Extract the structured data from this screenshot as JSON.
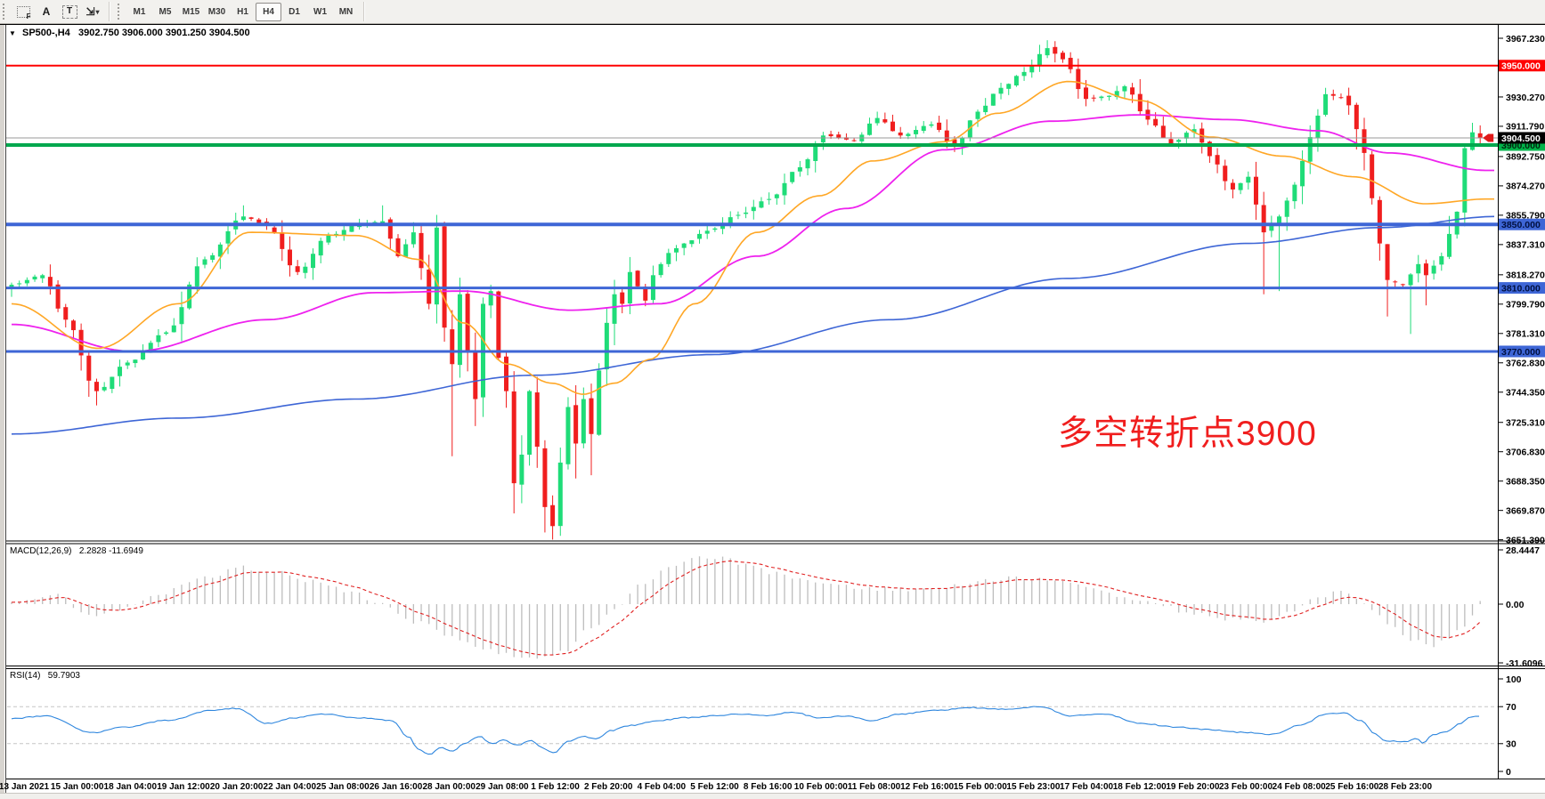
{
  "toolbar": {
    "icons": [
      {
        "name": "template-grid-icon",
        "glyph": "F"
      },
      {
        "name": "text-label-icon",
        "glyph": "A"
      },
      {
        "name": "text-box-icon",
        "glyph": "T"
      },
      {
        "name": "arrows-tool-icon",
        "glyph": "⇲",
        "caret": "▾"
      }
    ],
    "timeframes": [
      "M1",
      "M5",
      "M15",
      "M30",
      "H1",
      "H4",
      "D1",
      "W1",
      "MN"
    ],
    "active_timeframe": "H4"
  },
  "chart": {
    "dropdown_icon": "▼",
    "symbol_period": "SP500-,H4",
    "ohlc": "3902.750 3906.000 3901.250 3904.500"
  },
  "annotation": {
    "text": "多空转折点3900",
    "color": "#F01E1E"
  },
  "price_axis": {
    "ticks": [
      "3967.230",
      "3930.270",
      "3911.790",
      "3892.750",
      "3874.270",
      "3855.790",
      "3837.310",
      "3818.270",
      "3799.790",
      "3781.310",
      "3762.830",
      "3744.350",
      "3725.310",
      "3706.830",
      "3688.350",
      "3669.870",
      "3651.390"
    ],
    "badges": [
      {
        "text": "3950.000",
        "price": 3950,
        "bg": "#FF0000",
        "fg": "#FFFFFF"
      },
      {
        "text": "3900.000",
        "price": 3900,
        "bg": "#00B44A",
        "fg": "#00260D"
      },
      {
        "text": "3850.000",
        "price": 3850,
        "bg": "#3E66D6",
        "fg": "#001040"
      },
      {
        "text": "3810.000",
        "price": 3810,
        "bg": "#3E66D6",
        "fg": "#001040"
      },
      {
        "text": "3770.000",
        "price": 3770,
        "bg": "#3E66D6",
        "fg": "#001040"
      }
    ],
    "current_badge": {
      "text": "3904.500",
      "price": 3904.5,
      "bg": "#000000",
      "fg": "#FFFFFF"
    }
  },
  "hlines": [
    {
      "price": 3950,
      "color": "#FF0000",
      "width": 2
    },
    {
      "price": 3900,
      "color": "#00A84E",
      "width": 4
    },
    {
      "price": 3850,
      "color": "#3E66D6",
      "width": 4
    },
    {
      "price": 3810,
      "color": "#3E66D6",
      "width": 3
    },
    {
      "price": 3770,
      "color": "#3E66D6",
      "width": 3
    }
  ],
  "current_price_line": {
    "price": 3904.5,
    "color": "#9a9a9a"
  },
  "macd_panel": {
    "label": "MACD(12,26,9)",
    "values": "2.2828 -11.6949",
    "axis_labels": [
      {
        "text": "28.4447",
        "value": 28.4447
      },
      {
        "text": "0.00",
        "value": 0
      },
      {
        "text": "-31.6096",
        "value": -31.6096
      }
    ],
    "bar_color": "#bdbdbd",
    "signal_color": "#e02020"
  },
  "rsi_panel": {
    "label": "RSI(14)",
    "value": "59.7903",
    "axis_labels": [
      {
        "text": "100",
        "value": 100
      },
      {
        "text": "70",
        "value": 70
      },
      {
        "text": "30",
        "value": 30
      },
      {
        "text": "0",
        "value": 0
      }
    ],
    "levels": [
      70,
      30
    ],
    "line_color": "#2E86DE"
  },
  "time_axis": {
    "labels": [
      "13 Jan 2021",
      "15 Jan 00:00",
      "18 Jan 04:00",
      "19 Jan 12:00",
      "20 Jan 20:00",
      "22 Jan 04:00",
      "25 Jan 08:00",
      "26 Jan 16:00",
      "28 Jan 00:00",
      "29 Jan 08:00",
      "1 Feb 12:00",
      "2 Feb 20:00",
      "4 Feb 04:00",
      "5 Feb 12:00",
      "8 Feb 16:00",
      "10 Feb 00:00",
      "11 Feb 08:00",
      "12 Feb 16:00",
      "15 Feb 00:00",
      "15 Feb 23:00",
      "17 Feb 04:00",
      "18 Feb 12:00",
      "19 Feb 20:00",
      "23 Feb 00:00",
      "24 Feb 08:00",
      "25 Feb 16:00",
      "28 Feb 23:00"
    ]
  },
  "chart_data": {
    "type": "candlestick",
    "symbol": "SP500-",
    "timeframe": "H4",
    "price_range": {
      "top": 3967.23,
      "bottom": 3651.39
    },
    "candle_count": 191,
    "bull_color": "#1FDC78",
    "bear_color": "#F01E1E",
    "close_waypoints": [
      [
        0,
        3812
      ],
      [
        4,
        3818
      ],
      [
        7,
        3790
      ],
      [
        11,
        3745
      ],
      [
        15,
        3763
      ],
      [
        20,
        3782
      ],
      [
        25,
        3828
      ],
      [
        30,
        3855
      ],
      [
        33,
        3849
      ],
      [
        37,
        3820
      ],
      [
        41,
        3843
      ],
      [
        45,
        3850
      ],
      [
        48,
        3852
      ],
      [
        50,
        3830
      ],
      [
        52,
        3845
      ],
      [
        54,
        3800
      ],
      [
        55,
        3848
      ],
      [
        56,
        3785
      ],
      [
        57,
        3762
      ],
      [
        58,
        3806
      ],
      [
        59,
        3770
      ],
      [
        60,
        3740
      ],
      [
        61,
        3800
      ],
      [
        62,
        3808
      ],
      [
        63,
        3766
      ],
      [
        64,
        3745
      ],
      [
        65,
        3687
      ],
      [
        66,
        3705
      ],
      [
        67,
        3745
      ],
      [
        68,
        3710
      ],
      [
        69,
        3672
      ],
      [
        70,
        3660
      ],
      [
        71,
        3700
      ],
      [
        72,
        3735
      ],
      [
        73,
        3712
      ],
      [
        74,
        3740
      ],
      [
        75,
        3718
      ],
      [
        76,
        3758
      ],
      [
        77,
        3788
      ],
      [
        78,
        3806
      ],
      [
        79,
        3800
      ],
      [
        80,
        3820
      ],
      [
        82,
        3802
      ],
      [
        83,
        3818
      ],
      [
        85,
        3832
      ],
      [
        87,
        3838
      ],
      [
        90,
        3846
      ],
      [
        94,
        3856
      ],
      [
        98,
        3866
      ],
      [
        102,
        3886
      ],
      [
        105,
        3906
      ],
      [
        109,
        3903
      ],
      [
        112,
        3917
      ],
      [
        115,
        3906
      ],
      [
        119,
        3913
      ],
      [
        122,
        3899
      ],
      [
        125,
        3921
      ],
      [
        128,
        3936
      ],
      [
        131,
        3946
      ],
      [
        134,
        3961
      ],
      [
        136,
        3954
      ],
      [
        139,
        3929
      ],
      [
        142,
        3931
      ],
      [
        144,
        3937
      ],
      [
        147,
        3916
      ],
      [
        150,
        3901
      ],
      [
        153,
        3910
      ],
      [
        155,
        3893
      ],
      [
        158,
        3872
      ],
      [
        160,
        3880
      ],
      [
        162,
        3845
      ],
      [
        164,
        3855
      ],
      [
        166,
        3875
      ],
      [
        168,
        3905
      ],
      [
        170,
        3932
      ],
      [
        172,
        3930
      ],
      [
        173,
        3925
      ],
      [
        175,
        3895
      ],
      [
        177,
        3838
      ],
      [
        178,
        3815
      ],
      [
        180,
        3812
      ],
      [
        182,
        3825
      ],
      [
        183,
        3818
      ],
      [
        185,
        3830
      ],
      [
        187,
        3858
      ],
      [
        188,
        3898
      ],
      [
        189,
        3908
      ],
      [
        190,
        3904.5
      ]
    ],
    "wick_lows": {
      "11": 3736,
      "57": 3704,
      "60": 3723,
      "65": 3668,
      "69": 3656,
      "70": 3651.5,
      "73": 3690,
      "75": 3692,
      "162": 3806,
      "164": 3808,
      "178": 3792,
      "181": 3781,
      "183": 3799
    },
    "wick_highs": {
      "30": 3862,
      "48": 3862,
      "55": 3856,
      "62": 3812,
      "112": 3921,
      "134": 3966,
      "170": 3936,
      "189": 3914
    },
    "ma_lines": [
      {
        "name": "ma-slow-blue",
        "color": "#3E66D6",
        "width": 1.6,
        "points": [
          [
            13,
            3718
          ],
          [
            200,
            3728
          ],
          [
            400,
            3740
          ],
          [
            600,
            3755
          ],
          [
            800,
            3768
          ],
          [
            1000,
            3790
          ],
          [
            1200,
            3816
          ],
          [
            1400,
            3838
          ],
          [
            1550,
            3848
          ],
          [
            1682,
            3855
          ]
        ]
      },
      {
        "name": "ma-mid-magenta",
        "color": "#EE22EE",
        "width": 1.8,
        "points": [
          [
            13,
            3787
          ],
          [
            150,
            3770
          ],
          [
            300,
            3790
          ],
          [
            420,
            3807
          ],
          [
            520,
            3808
          ],
          [
            640,
            3796
          ],
          [
            740,
            3800
          ],
          [
            850,
            3830
          ],
          [
            950,
            3860
          ],
          [
            1060,
            3897
          ],
          [
            1180,
            3915
          ],
          [
            1280,
            3919
          ],
          [
            1380,
            3916
          ],
          [
            1480,
            3909
          ],
          [
            1560,
            3895
          ],
          [
            1670,
            3884
          ]
        ]
      },
      {
        "name": "ma-fast-orange",
        "color": "#FFA726",
        "width": 1.6,
        "points": [
          [
            13,
            3800
          ],
          [
            110,
            3772
          ],
          [
            200,
            3800
          ],
          [
            280,
            3845
          ],
          [
            400,
            3843
          ],
          [
            470,
            3828
          ],
          [
            520,
            3788
          ],
          [
            570,
            3762
          ],
          [
            620,
            3750
          ],
          [
            655,
            3743
          ],
          [
            690,
            3750
          ],
          [
            730,
            3765
          ],
          [
            780,
            3800
          ],
          [
            850,
            3845
          ],
          [
            920,
            3868
          ],
          [
            980,
            3890
          ],
          [
            1060,
            3902
          ],
          [
            1120,
            3920
          ],
          [
            1200,
            3940
          ],
          [
            1280,
            3928
          ],
          [
            1360,
            3905
          ],
          [
            1440,
            3893
          ],
          [
            1520,
            3880
          ],
          [
            1600,
            3863
          ],
          [
            1670,
            3866
          ]
        ]
      }
    ],
    "macd": {
      "range": {
        "top": 28.4447,
        "bottom": -31.6096
      },
      "line_points": [
        [
          13,
          2
        ],
        [
          60,
          5
        ],
        [
          105,
          -7
        ],
        [
          140,
          -2
        ],
        [
          180,
          6
        ],
        [
          230,
          14
        ],
        [
          271,
          19
        ],
        [
          310,
          17
        ],
        [
          350,
          12
        ],
        [
          390,
          7
        ],
        [
          430,
          0
        ],
        [
          470,
          -10
        ],
        [
          510,
          -18
        ],
        [
          545,
          -23
        ],
        [
          575,
          -27
        ],
        [
          605,
          -28
        ],
        [
          635,
          -24
        ],
        [
          665,
          -12
        ],
        [
          690,
          -2
        ],
        [
          720,
          10
        ],
        [
          750,
          20
        ],
        [
          780,
          25
        ],
        [
          810,
          24
        ],
        [
          840,
          20
        ],
        [
          870,
          16
        ],
        [
          900,
          13
        ],
        [
          940,
          10
        ],
        [
          980,
          8
        ],
        [
          1020,
          7
        ],
        [
          1060,
          9
        ],
        [
          1100,
          12
        ],
        [
          1140,
          14
        ],
        [
          1180,
          13
        ],
        [
          1220,
          9
        ],
        [
          1260,
          4
        ],
        [
          1300,
          0
        ],
        [
          1340,
          -5
        ],
        [
          1380,
          -8
        ],
        [
          1420,
          -9
        ],
        [
          1450,
          -4
        ],
        [
          1480,
          3
        ],
        [
          1505,
          7
        ],
        [
          1525,
          3
        ],
        [
          1545,
          -5
        ],
        [
          1565,
          -13
        ],
        [
          1585,
          -19
        ],
        [
          1605,
          -22
        ],
        [
          1625,
          -19
        ],
        [
          1645,
          -11
        ],
        [
          1663,
          2.28
        ]
      ]
    },
    "rsi": {
      "points": [
        [
          13,
          57
        ],
        [
          50,
          60
        ],
        [
          105,
          42
        ],
        [
          140,
          48
        ],
        [
          186,
          55
        ],
        [
          240,
          66
        ],
        [
          265,
          68
        ],
        [
          300,
          52
        ],
        [
          330,
          58
        ],
        [
          365,
          62
        ],
        [
          400,
          58
        ],
        [
          440,
          55
        ],
        [
          458,
          38
        ],
        [
          470,
          24
        ],
        [
          483,
          18
        ],
        [
          495,
          26
        ],
        [
          508,
          22
        ],
        [
          522,
          30
        ],
        [
          538,
          38
        ],
        [
          552,
          30
        ],
        [
          566,
          34
        ],
        [
          580,
          28
        ],
        [
          596,
          33
        ],
        [
          610,
          25
        ],
        [
          622,
          20
        ],
        [
          638,
          32
        ],
        [
          655,
          38
        ],
        [
          670,
          35
        ],
        [
          685,
          44
        ],
        [
          710,
          50
        ],
        [
          740,
          55
        ],
        [
          770,
          58
        ],
        [
          800,
          60
        ],
        [
          830,
          62
        ],
        [
          860,
          60
        ],
        [
          890,
          64
        ],
        [
          920,
          58
        ],
        [
          950,
          60
        ],
        [
          980,
          55
        ],
        [
          1010,
          62
        ],
        [
          1050,
          66
        ],
        [
          1090,
          69
        ],
        [
          1130,
          67
        ],
        [
          1170,
          70
        ],
        [
          1200,
          60
        ],
        [
          1240,
          62
        ],
        [
          1280,
          52
        ],
        [
          1320,
          48
        ],
        [
          1360,
          45
        ],
        [
          1400,
          42
        ],
        [
          1430,
          40
        ],
        [
          1460,
          50
        ],
        [
          1490,
          62
        ],
        [
          1510,
          63
        ],
        [
          1528,
          55
        ],
        [
          1545,
          40
        ],
        [
          1555,
          33
        ],
        [
          1580,
          32
        ],
        [
          1590,
          36
        ],
        [
          1598,
          31
        ],
        [
          1610,
          40
        ],
        [
          1625,
          43
        ],
        [
          1640,
          52
        ],
        [
          1652,
          59
        ],
        [
          1663,
          59.79
        ]
      ]
    }
  }
}
